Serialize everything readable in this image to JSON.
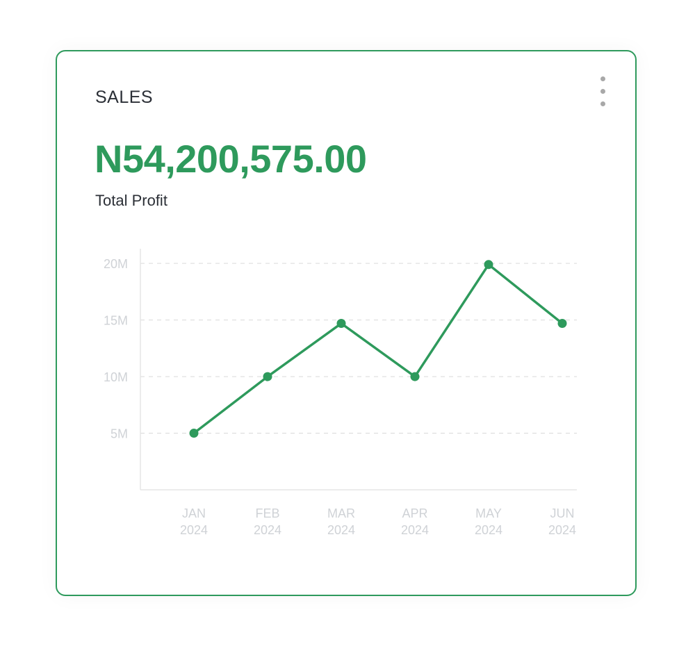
{
  "card": {
    "title": "SALES",
    "amount": "N54,200,575.00",
    "amount_label": "Total Profit",
    "menu_icon": "more-vertical-icon"
  },
  "colors": {
    "accent": "#2e9a5c",
    "title_text": "#2b2f36",
    "axis_text": "#cfd2d6",
    "grid": "#d9d9d9",
    "menu_dots": "#a8a8a8"
  },
  "chart_data": {
    "type": "line",
    "categories": [
      "JAN 2024",
      "FEB 2024",
      "MAR 2024",
      "APR 2024",
      "MAY 2024",
      "JUN 2024"
    ],
    "category_lines": [
      [
        "JAN",
        "2024"
      ],
      [
        "FEB",
        "2024"
      ],
      [
        "MAR",
        "2024"
      ],
      [
        "APR",
        "2024"
      ],
      [
        "MAY",
        "2024"
      ],
      [
        "JUN",
        "2024"
      ]
    ],
    "series": [
      {
        "values": [
          5000000,
          10000000,
          14700000,
          10000000,
          19900000,
          14700000
        ]
      }
    ],
    "ylim": [
      0,
      21300000
    ],
    "yticks": [
      5000000,
      10000000,
      15000000,
      20000000
    ],
    "ytick_labels": [
      "5M",
      "10M",
      "15M",
      "20M"
    ],
    "grid": "horizontal-dashed",
    "legend": "none",
    "title": "",
    "xlabel": "",
    "ylabel": ""
  }
}
